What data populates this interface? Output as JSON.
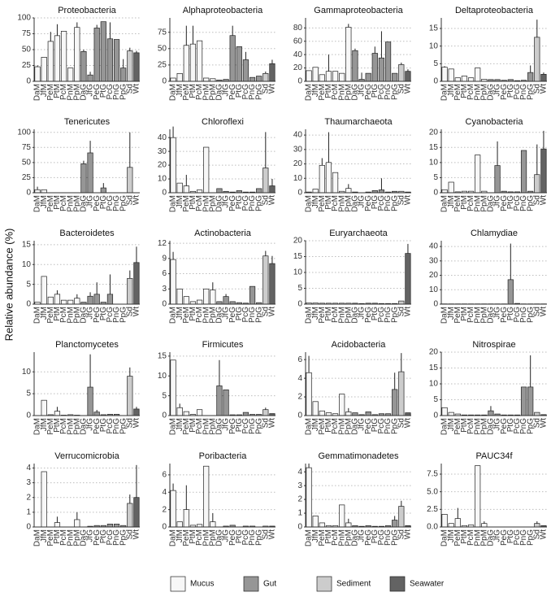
{
  "ylabel": "Relative abundance (%)",
  "legend": [
    {
      "name": "Mucus",
      "color": "#f7f7f7"
    },
    {
      "name": "Gut",
      "color": "#969696"
    },
    {
      "name": "Sediment",
      "color": "#cccccc"
    },
    {
      "name": "Seawater",
      "color": "#636363"
    }
  ],
  "bar_colors": [
    "#f7f7f7",
    "#f7f7f7",
    "#f7f7f7",
    "#f7f7f7",
    "#f7f7f7",
    "#f7f7f7",
    "#f7f7f7",
    "#969696",
    "#969696",
    "#969696",
    "#969696",
    "#969696",
    "#969696",
    "#969696",
    "#cccccc",
    "#636363"
  ],
  "chart_data": [
    {
      "type": "bar",
      "title": "Proteobacteria",
      "categories": [
        "DaM",
        "JfM",
        "PeM",
        "PtM",
        "PcM",
        "PnM",
        "PpM",
        "DaG",
        "JfG",
        "PeG",
        "PtG",
        "PcG",
        "PnG",
        "PpG",
        "Sd",
        "Wt"
      ],
      "values": [
        23,
        38,
        63,
        72,
        79,
        21,
        85,
        47,
        10,
        84,
        94,
        67,
        66,
        21,
        48,
        45
      ],
      "errors": [
        2,
        0,
        15,
        18,
        0,
        0,
        8,
        3,
        5,
        5,
        0,
        26,
        0,
        14,
        5,
        3
      ],
      "ylim": [
        0,
        100
      ],
      "yticks": [
        0,
        25,
        50,
        75,
        100
      ],
      "grid": true
    },
    {
      "type": "bar",
      "title": "Alphaproteobacteria",
      "categories": [
        "DaM",
        "JfM",
        "PeM",
        "PtM",
        "PcM",
        "PnM",
        "PpM",
        "DaG",
        "JfG",
        "PeG",
        "PtG",
        "PcG",
        "PnG",
        "PpG",
        "Sd",
        "Wt"
      ],
      "values": [
        5,
        12,
        55,
        57,
        62,
        5,
        4,
        2,
        3,
        70,
        53,
        33,
        6,
        8,
        12,
        27
      ],
      "errors": [
        0,
        0,
        30,
        28,
        0,
        0,
        0,
        0,
        0,
        15,
        0,
        12,
        0,
        0,
        3,
        6
      ],
      "ylim": [
        0,
        97
      ],
      "yticks": [
        0,
        25,
        50,
        75
      ],
      "grid": true
    },
    {
      "type": "bar",
      "title": "Gammaproteobacteria",
      "categories": [
        "DaM",
        "JfM",
        "PeM",
        "PtM",
        "PcM",
        "PnM",
        "PpM",
        "DaG",
        "JfG",
        "PeG",
        "PtG",
        "PcG",
        "PnG",
        "PpG",
        "Sd",
        "Wt"
      ],
      "values": [
        16,
        21,
        10,
        15,
        15,
        12,
        81,
        46,
        3,
        12,
        42,
        35,
        59,
        12,
        25,
        15
      ],
      "errors": [
        0,
        0,
        0,
        25,
        0,
        0,
        5,
        3,
        10,
        0,
        10,
        40,
        0,
        0,
        3,
        3
      ],
      "ylim": [
        0,
        95
      ],
      "yticks": [
        0,
        20,
        40,
        60,
        80
      ],
      "grid": true
    },
    {
      "type": "bar",
      "title": "Deltaproteobacteria",
      "categories": [
        "DaM",
        "JfM",
        "PeM",
        "PtM",
        "PcM",
        "PnM",
        "PpM",
        "DaG",
        "JfG",
        "PeG",
        "PtG",
        "PcG",
        "PnG",
        "PpG",
        "Sd",
        "Wt"
      ],
      "values": [
        4,
        3.5,
        1,
        1.5,
        1,
        3.8,
        0.6,
        0.5,
        0.5,
        0.3,
        0.5,
        0.2,
        0.3,
        2.5,
        12.5,
        2
      ],
      "errors": [
        0.3,
        0,
        0,
        0,
        0,
        0,
        0,
        0,
        0,
        0,
        0,
        0,
        0,
        2,
        5,
        0.5
      ],
      "ylim": [
        0,
        18
      ],
      "yticks": [
        0,
        5,
        10,
        15
      ],
      "grid": true
    },
    {
      "type": "bar",
      "title": "Tenericutes",
      "categories": [
        "DaM",
        "JfM",
        "PeM",
        "PtM",
        "PcM",
        "PnM",
        "PpM",
        "DaG",
        "JfG",
        "PeG",
        "PtG",
        "PcG",
        "PnG",
        "PpG",
        "Sd",
        "Wt"
      ],
      "values": [
        5,
        5,
        0,
        0,
        0,
        0,
        0,
        48,
        66,
        0,
        8,
        0,
        0,
        0,
        42,
        0
      ],
      "errors": [
        5,
        0,
        0,
        0,
        0,
        0,
        0,
        5,
        20,
        0,
        8,
        0,
        0,
        0,
        58,
        0
      ],
      "ylim": [
        0,
        105
      ],
      "yticks": [
        0,
        25,
        50,
        75,
        100
      ],
      "grid": true
    },
    {
      "type": "bar",
      "title": "Chloroflexi",
      "categories": [
        "DaM",
        "JfM",
        "PeM",
        "PtM",
        "PcM",
        "PnM",
        "PpM",
        "DaG",
        "JfG",
        "PeG",
        "PtG",
        "PcG",
        "PnG",
        "PpG",
        "Sd",
        "Wt"
      ],
      "values": [
        40,
        7,
        5,
        1,
        2,
        33,
        0,
        3,
        1,
        0.5,
        1.5,
        0.5,
        0.5,
        3,
        18,
        5
      ],
      "errors": [
        8,
        0,
        8,
        0,
        0,
        0,
        0,
        0,
        0,
        0,
        0,
        0,
        0,
        0,
        26,
        5
      ],
      "ylim": [
        0,
        46
      ],
      "yticks": [
        0,
        10,
        20,
        30,
        40
      ],
      "grid": true
    },
    {
      "type": "bar",
      "title": "Thaumarchaeota",
      "categories": [
        "DaM",
        "JfM",
        "PeM",
        "PtM",
        "PcM",
        "PnM",
        "PpM",
        "DaG",
        "JfG",
        "PeG",
        "PtG",
        "PcG",
        "PnG",
        "PpG",
        "Sd",
        "Wt"
      ],
      "values": [
        0.5,
        2.5,
        19,
        21,
        14,
        1,
        3,
        0.5,
        0,
        0.5,
        1.5,
        2,
        0.5,
        1,
        1,
        0.5
      ],
      "errors": [
        0,
        0,
        5,
        21,
        0,
        0,
        3,
        0,
        0,
        0,
        0,
        8,
        0,
        0,
        0,
        0
      ],
      "ylim": [
        0,
        44
      ],
      "yticks": [
        0,
        10,
        20,
        30,
        40
      ],
      "grid": true
    },
    {
      "type": "bar",
      "title": "Cyanobacteria",
      "categories": [
        "DaM",
        "JfM",
        "PeM",
        "PtM",
        "PcM",
        "PnM",
        "PpM",
        "DaG",
        "JfG",
        "PeG",
        "PtG",
        "PcG",
        "PnG",
        "PpG",
        "Sd",
        "Wt"
      ],
      "values": [
        1,
        3.5,
        0.3,
        0.5,
        0.5,
        12.5,
        0.5,
        0,
        9,
        0.5,
        0.3,
        0.3,
        14,
        0.5,
        6,
        14.5
      ],
      "errors": [
        0,
        0,
        0,
        0,
        0,
        0,
        0,
        0,
        8,
        0,
        0,
        0,
        0,
        0,
        10,
        6
      ],
      "ylim": [
        0,
        21
      ],
      "yticks": [
        0,
        5,
        10,
        15,
        20
      ],
      "grid": true
    },
    {
      "type": "bar",
      "title": "Bacteroidetes",
      "categories": [
        "DaM",
        "JfM",
        "PeM",
        "PtM",
        "PcM",
        "PnM",
        "PpM",
        "DaG",
        "JfG",
        "PeG",
        "PtG",
        "PcG",
        "PnG",
        "PpG",
        "Sd",
        "Wt"
      ],
      "values": [
        0.5,
        7,
        1.8,
        2.5,
        1,
        1,
        1.5,
        0.5,
        2,
        2.5,
        0.5,
        2.5,
        0,
        0,
        6.5,
        10.5
      ],
      "errors": [
        0,
        0,
        0,
        1,
        0,
        0,
        1,
        0,
        1,
        3,
        0,
        5,
        0,
        0,
        2,
        4
      ],
      "ylim": [
        0,
        16
      ],
      "yticks": [
        0,
        5,
        10,
        15
      ],
      "grid": true
    },
    {
      "type": "bar",
      "title": "Actinobacteria",
      "categories": [
        "DaM",
        "JfM",
        "PeM",
        "PtM",
        "PcM",
        "PnM",
        "PpM",
        "DaG",
        "JfG",
        "PeG",
        "PtG",
        "PcG",
        "PnG",
        "PpG",
        "Sd",
        "Wt"
      ],
      "values": [
        8.8,
        3,
        1.5,
        0.5,
        0.8,
        3,
        2.8,
        0.5,
        1.5,
        0.5,
        0.3,
        0.2,
        3.5,
        0.3,
        9.5,
        8
      ],
      "errors": [
        1.5,
        0,
        0,
        0,
        0,
        0,
        1.5,
        0,
        0.5,
        0,
        0,
        0,
        0,
        0,
        1,
        1.5
      ],
      "ylim": [
        0,
        12.5
      ],
      "yticks": [
        0,
        3,
        6,
        9,
        12
      ],
      "grid": true
    },
    {
      "type": "bar",
      "title": "Euryarchaeota",
      "categories": [
        "DaM",
        "JfM",
        "PeM",
        "PtM",
        "PcM",
        "PnM",
        "PpM",
        "DaG",
        "JfG",
        "PeG",
        "PtG",
        "PcG",
        "PnG",
        "PpG",
        "Sd",
        "Wt"
      ],
      "values": [
        0.4,
        0.4,
        0.3,
        0.3,
        0.3,
        0.3,
        0.3,
        0.3,
        0.2,
        0.3,
        0.3,
        0.2,
        0.2,
        0.2,
        1,
        16
      ],
      "errors": [
        0,
        0,
        0,
        0,
        0,
        0,
        0,
        0,
        0,
        0,
        0,
        0,
        0,
        0,
        0,
        3
      ],
      "ylim": [
        0,
        20
      ],
      "yticks": [
        0,
        5,
        10,
        15,
        20
      ],
      "grid": true
    },
    {
      "type": "bar",
      "title": "Chlamydiae",
      "categories": [
        "DaM",
        "JfM",
        "PeM",
        "PtM",
        "PcM",
        "PnM",
        "PpM",
        "DaG",
        "JfG",
        "PeG",
        "PtG",
        "PcG",
        "PnG",
        "PpG",
        "Sd",
        "Wt"
      ],
      "values": [
        0.2,
        0.2,
        0.2,
        0.2,
        0.2,
        0.2,
        0.2,
        0.2,
        0.2,
        0.2,
        17,
        0.5,
        0.2,
        0.2,
        0.2,
        0.2
      ],
      "errors": [
        0,
        0,
        0,
        0,
        0,
        0,
        0,
        0,
        0,
        0,
        25,
        0,
        0,
        0,
        0,
        0
      ],
      "ylim": [
        0,
        44
      ],
      "yticks": [
        0,
        10,
        20,
        30,
        40
      ],
      "grid": true
    },
    {
      "type": "bar",
      "title": "Planctomycetes",
      "categories": [
        "DaM",
        "JfM",
        "PeM",
        "PtM",
        "PcM",
        "PnM",
        "PpM",
        "DaG",
        "JfG",
        "PeG",
        "PtG",
        "PcG",
        "PnG",
        "PpG",
        "Sd",
        "Wt"
      ],
      "values": [
        0,
        3.5,
        0.2,
        1,
        0.1,
        0.2,
        0.1,
        0,
        6.5,
        0.8,
        0.2,
        0.3,
        0.3,
        0,
        9,
        1.5
      ],
      "errors": [
        0,
        0,
        0,
        1,
        0,
        0,
        0,
        0,
        7.5,
        0.5,
        0,
        0,
        0,
        0,
        2,
        0.5
      ],
      "ylim": [
        0,
        14.5
      ],
      "yticks": [
        0,
        5,
        10
      ],
      "grid": true
    },
    {
      "type": "bar",
      "title": "Firmicutes",
      "categories": [
        "DaM",
        "JfM",
        "PeM",
        "PtM",
        "PcM",
        "PnM",
        "PpM",
        "DaG",
        "JfG",
        "PeG",
        "PtG",
        "PcG",
        "PnG",
        "PpG",
        "Sd",
        "Wt"
      ],
      "values": [
        14,
        2,
        1,
        0.3,
        1.5,
        0,
        0,
        7.5,
        6.5,
        0.2,
        0.2,
        0.8,
        0.3,
        0.3,
        1.5,
        0.5
      ],
      "errors": [
        0,
        1,
        0,
        0,
        0,
        0,
        0,
        6.5,
        0,
        0,
        0,
        0,
        0,
        0,
        0.5,
        0
      ],
      "ylim": [
        0,
        16
      ],
      "yticks": [
        0,
        5,
        10,
        15
      ],
      "grid": true
    },
    {
      "type": "bar",
      "title": "Acidobacteria",
      "categories": [
        "DaM",
        "JfM",
        "PeM",
        "PtM",
        "PcM",
        "PnM",
        "PpM",
        "DaG",
        "JfG",
        "PeG",
        "PtG",
        "PcG",
        "PnG",
        "PpG",
        "Sd",
        "Wt"
      ],
      "values": [
        4.6,
        1.5,
        0.5,
        0.3,
        0.2,
        2.3,
        0.4,
        0.3,
        0.1,
        0.4,
        0.1,
        0.2,
        0.2,
        2.8,
        4.7,
        0.3
      ],
      "errors": [
        1.8,
        0,
        0,
        0,
        0,
        0,
        0.4,
        0,
        0,
        0,
        0,
        0,
        0,
        1.8,
        2,
        0
      ],
      "ylim": [
        0,
        6.8
      ],
      "yticks": [
        0,
        2,
        4,
        6
      ],
      "grid": true
    },
    {
      "type": "bar",
      "title": "Nitrospirae",
      "categories": [
        "DaM",
        "JfM",
        "PeM",
        "PtM",
        "PcM",
        "PnM",
        "PpM",
        "DaG",
        "JfG",
        "PeG",
        "PtG",
        "PcG",
        "PnG",
        "PpG",
        "Sd",
        "Wt"
      ],
      "values": [
        2.5,
        1,
        0.5,
        0.2,
        0.2,
        0.2,
        0.2,
        1.5,
        0.5,
        0.2,
        0.2,
        0.2,
        9,
        9,
        1,
        0.3
      ],
      "errors": [
        0,
        0,
        0,
        0,
        0,
        0,
        0,
        1.5,
        0,
        0,
        0,
        0,
        0,
        10,
        0,
        0
      ],
      "ylim": [
        0,
        20
      ],
      "yticks": [
        0,
        5,
        10,
        15,
        20
      ],
      "grid": true
    },
    {
      "type": "bar",
      "title": "Verrucomicrobia",
      "categories": [
        "DaM",
        "JfM",
        "PeM",
        "PtM",
        "PcM",
        "PnM",
        "PpM",
        "DaG",
        "JfG",
        "PeG",
        "PtG",
        "PcG",
        "PnG",
        "PpG",
        "Sd",
        "Wt"
      ],
      "values": [
        0,
        3.75,
        0,
        0.3,
        0,
        0,
        0.5,
        0,
        0.05,
        0.1,
        0.1,
        0.2,
        0.2,
        0.1,
        1.6,
        2
      ],
      "errors": [
        0,
        0,
        0,
        0.4,
        0,
        0,
        0.5,
        0,
        0,
        0,
        0,
        0,
        0,
        0,
        0.6,
        2.2
      ],
      "ylim": [
        0,
        4.3
      ],
      "yticks": [
        0,
        1,
        2,
        3,
        4
      ],
      "grid": true
    },
    {
      "type": "bar",
      "title": "Poribacteria",
      "categories": [
        "DaM",
        "JfM",
        "PeM",
        "PtM",
        "PcM",
        "PnM",
        "PpM",
        "DaG",
        "JfG",
        "PeG",
        "PtG",
        "PcG",
        "PnG",
        "PpG",
        "Sd",
        "Wt"
      ],
      "values": [
        4.2,
        0.6,
        2,
        0.2,
        0.3,
        7,
        0.6,
        0,
        0.1,
        0.2,
        0,
        0.1,
        0.1,
        0,
        0.1,
        0.1
      ],
      "errors": [
        0.8,
        0,
        2.8,
        0,
        0,
        0,
        1,
        0,
        0,
        0,
        0,
        0,
        0,
        0,
        0,
        0
      ],
      "ylim": [
        0,
        7.3
      ],
      "yticks": [
        0,
        2,
        4,
        6
      ],
      "grid": true
    },
    {
      "type": "bar",
      "title": "Gemmatimonadetes",
      "categories": [
        "DaM",
        "JfM",
        "PeM",
        "PtM",
        "PcM",
        "PnM",
        "PpM",
        "DaG",
        "JfG",
        "PeG",
        "PtG",
        "PcG",
        "PnG",
        "PpG",
        "Sd",
        "Wt"
      ],
      "values": [
        4.3,
        0.8,
        0.3,
        0.1,
        0.1,
        1.6,
        0.3,
        0.1,
        0.05,
        0.1,
        0.05,
        0.05,
        0.1,
        0.5,
        1.5,
        0.1
      ],
      "errors": [
        0.3,
        0,
        0,
        0,
        0,
        0,
        0.3,
        0,
        0,
        0,
        0,
        0,
        0,
        0.3,
        0.4,
        0
      ],
      "ylim": [
        0,
        4.6
      ],
      "yticks": [
        0,
        1,
        2,
        3,
        4
      ],
      "grid": true
    },
    {
      "type": "bar",
      "title": "PAUC34f",
      "categories": [
        "DaM",
        "JfM",
        "PeM",
        "PtM",
        "PcM",
        "PnM",
        "PpM",
        "DaG",
        "JfG",
        "PeG",
        "PtG",
        "PcG",
        "PnG",
        "PpG",
        "Sd",
        "Wt"
      ],
      "values": [
        1.8,
        0.5,
        1.2,
        0.2,
        0.3,
        8.7,
        0.5,
        0,
        0,
        0,
        0,
        0,
        0,
        0,
        0.5,
        0.2
      ],
      "errors": [
        0,
        0,
        1.5,
        0,
        0,
        0,
        0.3,
        0,
        0,
        0,
        0,
        0,
        0,
        0,
        0.3,
        0
      ],
      "ylim": [
        0,
        9
      ],
      "yticks": [
        {
          "value": 0,
          "label": "0.0"
        },
        2.5,
        {
          "value": 5,
          "label": "5.0"
        },
        7.5
      ],
      "grid": true
    }
  ]
}
